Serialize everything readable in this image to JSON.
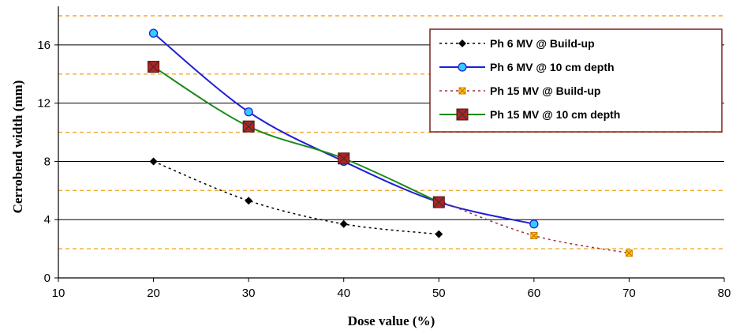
{
  "chart_data": {
    "type": "line",
    "xlabel": "Dose value (%)",
    "ylabel": "Cerrobend width (mm)",
    "xlim": [
      10,
      80
    ],
    "ylim": [
      0,
      18
    ],
    "xticks": [
      10,
      20,
      30,
      40,
      50,
      60,
      70,
      80
    ],
    "yticks": [
      0,
      4,
      8,
      12,
      16
    ],
    "grid": "horizontal solid black lines at 4, 8, 12, 16; dashed orange lines at 2, 6, 10, 14, 18",
    "legend_position": "top-right",
    "series": [
      {
        "name": "Ph 6 MV @ Build-up",
        "color": "#000000",
        "line_style": "dotted",
        "marker": "diamond",
        "x": [
          20,
          30,
          40,
          50
        ],
        "y": [
          8.0,
          5.3,
          3.7,
          3.0
        ]
      },
      {
        "name": "Ph 6 MV @ 10 cm depth",
        "color": "#1f1fd6",
        "line_style": "solid",
        "marker": "circle",
        "marker_fill": "#33ccff",
        "x": [
          20,
          30,
          40,
          50,
          60
        ],
        "y": [
          16.8,
          11.4,
          8.0,
          5.2,
          3.7
        ]
      },
      {
        "name": "Ph 15 MV @ Build-up",
        "color": "#993333",
        "line_style": "dotted",
        "marker": "x-square",
        "marker_fill": "#ffcc00",
        "x": [
          50,
          60,
          70
        ],
        "y": [
          5.3,
          2.9,
          1.7
        ]
      },
      {
        "name": "Ph 15 MV @ 10 cm depth",
        "color": "#1a8a1a",
        "line_style": "solid",
        "marker": "x-square",
        "marker_fill": "#b22222",
        "x": [
          20,
          30,
          40,
          50
        ],
        "y": [
          14.5,
          10.4,
          8.2,
          5.2
        ]
      }
    ]
  }
}
